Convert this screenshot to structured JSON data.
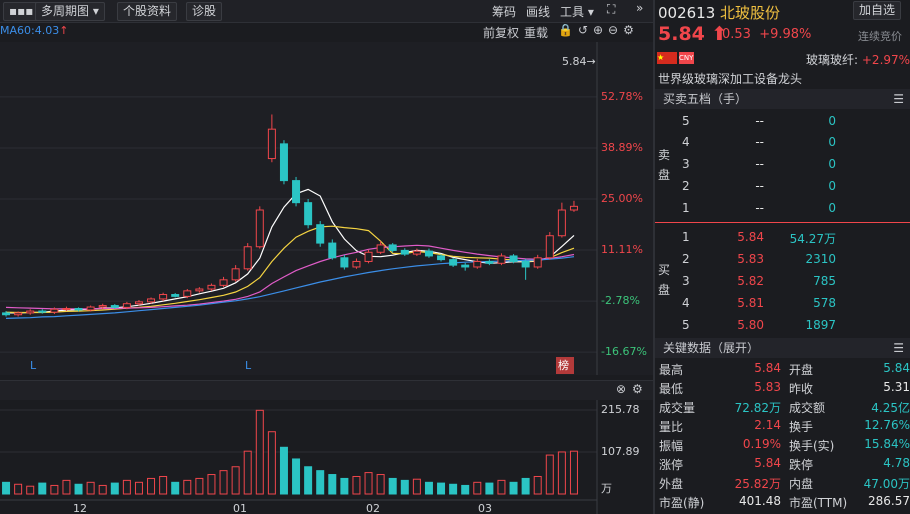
{
  "toolbar": {
    "menu": "▪▪▪",
    "items": [
      "多周期图",
      "个股资料",
      "诊股"
    ],
    "right_items": [
      "筹码",
      "画线",
      "工具"
    ]
  },
  "chart_header": {
    "ma_legend": "MA60:4.03",
    "right_items": [
      "前复权",
      "重载"
    ]
  },
  "quote": {
    "code": "002613",
    "name": "北玻股份",
    "add_button": "加自选",
    "price": "5.84",
    "change": "0.53",
    "change_pct": "+9.98%",
    "status": "连续竞价",
    "sector": "玻璃玻纤:",
    "sector_change": "+2.97%",
    "concept": "世界级玻璃深加工设备龙头"
  },
  "order_book": {
    "title": "买卖五档（手）",
    "sell_label": "卖盘",
    "buy_label": "买盘",
    "sell": [
      [
        "5",
        "--",
        "0"
      ],
      [
        "4",
        "--",
        "0"
      ],
      [
        "3",
        "--",
        "0"
      ],
      [
        "2",
        "--",
        "0"
      ],
      [
        "1",
        "--",
        "0"
      ]
    ],
    "buy": [
      [
        "1",
        "5.84",
        "54.27万"
      ],
      [
        "2",
        "5.83",
        "2310"
      ],
      [
        "3",
        "5.82",
        "785"
      ],
      [
        "4",
        "5.81",
        "578"
      ],
      [
        "5",
        "5.80",
        "1897"
      ]
    ]
  },
  "key_data": {
    "title": "关键数据（展开）",
    "rows": [
      [
        "最高",
        "5.84",
        "开盘",
        "5.84"
      ],
      [
        "最低",
        "5.83",
        "昨收",
        "5.31"
      ],
      [
        "成交量",
        "72.82万",
        "成交额",
        "4.25亿"
      ],
      [
        "量比",
        "2.14",
        "换手",
        "12.76%"
      ],
      [
        "振幅",
        "0.19%",
        "换手(实)",
        "15.84%"
      ],
      [
        "涨停",
        "5.84",
        "跌停",
        "4.78"
      ],
      [
        "外盘",
        "25.82万",
        "内盘",
        "47.00万"
      ],
      [
        "市盈(静)",
        "401.48",
        "市盈(TTM)",
        "286.57"
      ]
    ]
  },
  "chart_data": [
    {
      "type": "candlestick",
      "last_price_label": "5.84→",
      "badge": "榜",
      "markers": [
        "L",
        "L"
      ],
      "ylim": [
        -22.9,
        65.0
      ],
      "yticks": [
        {
          "value": 52.78,
          "label": "52.78%"
        },
        {
          "value": 38.89,
          "label": "38.89%"
        },
        {
          "value": 25.0,
          "label": "25.00%"
        },
        {
          "value": 11.11,
          "label": "11.11%"
        },
        {
          "value": -2.78,
          "label": "-2.78%"
        },
        {
          "value": -16.67,
          "label": "-16.67%"
        }
      ],
      "grid": true,
      "up_color": "#f0464b",
      "down_color": "#2bc4c4",
      "open": [
        -6.0,
        -6.5,
        -6.0,
        -5.5,
        -5.8,
        -5.0,
        -4.8,
        -5.2,
        -4.4,
        -4.0,
        -4.5,
        -3.5,
        -3.0,
        -2.2,
        -1.0,
        -1.5,
        0.0,
        0.5,
        1.5,
        3.0,
        6.0,
        12.0,
        36.0,
        40.0,
        30.0,
        24.0,
        18.0,
        13.0,
        9.0,
        6.5,
        8.0,
        10.5,
        12.5,
        11.0,
        10.0,
        10.8,
        9.5,
        8.5,
        7.0,
        6.5,
        8.0,
        7.5,
        9.5,
        8.0,
        6.5,
        9.0,
        15.0,
        22.0
      ],
      "high": [
        -5.5,
        -5.6,
        -5.0,
        -5.0,
        -4.5,
        -4.3,
        -4.5,
        -4.0,
        -3.5,
        -3.6,
        -3.0,
        -2.5,
        -1.8,
        -0.5,
        -0.6,
        0.5,
        1.0,
        2.0,
        3.8,
        7.0,
        13.0,
        23.0,
        48.0,
        41.0,
        31.0,
        25.0,
        19.0,
        14.0,
        9.8,
        8.8,
        11.2,
        13.5,
        13.0,
        11.6,
        11.5,
        11.5,
        10.0,
        9.0,
        7.6,
        8.7,
        8.6,
        10.2,
        10.0,
        8.7,
        9.8,
        16.0,
        24.0,
        24.5
      ],
      "low": [
        -7.0,
        -7.0,
        -6.5,
        -6.2,
        -6.3,
        -5.5,
        -5.6,
        -5.6,
        -5.0,
        -4.9,
        -5.0,
        -4.0,
        -3.5,
        -2.8,
        -1.8,
        -2.0,
        -0.5,
        0.0,
        1.0,
        2.5,
        5.5,
        11.5,
        35.0,
        29.0,
        23.0,
        17.0,
        12.0,
        8.5,
        5.8,
        6.0,
        7.5,
        10.0,
        10.5,
        9.5,
        9.5,
        9.0,
        8.0,
        6.5,
        5.5,
        6.0,
        7.0,
        7.0,
        7.5,
        3.0,
        6.0,
        8.5,
        14.5,
        21.5
      ],
      "close": [
        -6.5,
        -6.0,
        -5.5,
        -5.8,
        -5.0,
        -4.8,
        -5.2,
        -4.4,
        -4.0,
        -4.5,
        -3.5,
        -3.0,
        -2.2,
        -1.0,
        -1.5,
        0.0,
        0.5,
        1.5,
        3.0,
        6.0,
        12.0,
        22.0,
        44.0,
        30.0,
        24.0,
        18.0,
        13.0,
        9.0,
        6.5,
        8.0,
        10.5,
        12.5,
        11.0,
        10.0,
        10.8,
        9.5,
        8.5,
        7.0,
        6.5,
        8.0,
        7.5,
        9.5,
        8.0,
        6.5,
        9.0,
        15.0,
        22.0,
        23.0
      ],
      "series": [
        {
          "color": "#ffffff",
          "values": [
            -6,
            -6,
            -5.9,
            -5.8,
            -5.5,
            -5.2,
            -5.1,
            -5,
            -4.7,
            -4.6,
            -4.3,
            -3.9,
            -3.4,
            -2.8,
            -2.2,
            -1.6,
            -0.8,
            -0.1,
            0.7,
            2.2,
            4.6,
            8.9,
            17.4,
            22.8,
            26.4,
            27.6,
            25.8,
            18.8,
            14.1,
            10.9,
            9.4,
            9.3,
            9.7,
            10.4,
            11.0,
            10.8,
            10.2,
            9.1,
            8.5,
            7.9,
            7.5,
            7.7,
            7.9,
            7.9,
            8.1,
            9.2,
            12.1,
            15.1
          ]
        },
        {
          "color": "#f5d442",
          "values": [
            -5.8,
            -5.9,
            -5.9,
            -5.9,
            -5.8,
            -5.6,
            -5.5,
            -5.4,
            -5.2,
            -5.0,
            -4.7,
            -4.5,
            -4.2,
            -3.8,
            -3.4,
            -2.9,
            -2.4,
            -1.8,
            -1.2,
            -0.3,
            1.2,
            3.6,
            8.0,
            11.6,
            14.6,
            16.2,
            17.4,
            17.6,
            17.2,
            16.9,
            16.4,
            13.5,
            10.2,
            10.1,
            10.7,
            10.4,
            9.9,
            9.4,
            9.1,
            9.0,
            8.9,
            8.6,
            8.4,
            8.0,
            8.3,
            9.0,
            10.4,
            11.6
          ]
        },
        {
          "color": "#e05cc8",
          "values": [
            -4.5,
            -4.6,
            -4.7,
            -4.8,
            -4.9,
            -4.9,
            -4.9,
            -4.9,
            -4.8,
            -4.8,
            -4.7,
            -4.6,
            -4.5,
            -4.3,
            -4.1,
            -3.9,
            -3.6,
            -3.2,
            -2.8,
            -2.3,
            -1.5,
            -0.3,
            2.0,
            3.8,
            5.5,
            6.8,
            8.0,
            9.0,
            9.8,
            10.5,
            11.3,
            11.8,
            12.0,
            12.2,
            12.4,
            12.2,
            11.6,
            11.0,
            10.5,
            10.0,
            9.6,
            9.2,
            9.0,
            8.7,
            8.6,
            8.8,
            9.3,
            9.9
          ]
        },
        {
          "color": "#3b8ee8",
          "values": [
            -7.5,
            -7.4,
            -7.3,
            -7.1,
            -7.0,
            -6.8,
            -6.6,
            -6.4,
            -6.2,
            -6.0,
            -5.7,
            -5.4,
            -5.1,
            -4.8,
            -4.5,
            -4.2,
            -3.9,
            -3.5,
            -3.1,
            -2.7,
            -2.2,
            -1.6,
            -0.8,
            0.0,
            0.8,
            1.6,
            2.4,
            3.1,
            3.8,
            4.4,
            5.0,
            5.5,
            6.0,
            6.4,
            6.8,
            7.1,
            7.4,
            7.6,
            7.8,
            7.9,
            8.0,
            8.1,
            8.2,
            8.3,
            8.4,
            8.6,
            8.9,
            9.3
          ]
        }
      ]
    },
    {
      "type": "bar",
      "unit_label": "万",
      "ylim": [
        0,
        241.5
      ],
      "yticks": [
        215.78,
        107.89
      ],
      "x_labels": [
        "12",
        "01",
        "02",
        "03"
      ],
      "values": [
        30,
        25,
        20,
        28,
        22,
        35,
        25,
        30,
        22,
        28,
        35,
        30,
        40,
        45,
        30,
        35,
        40,
        50,
        60,
        70,
        110,
        215,
        160,
        120,
        90,
        70,
        60,
        50,
        40,
        45,
        55,
        50,
        40,
        35,
        38,
        30,
        28,
        25,
        22,
        30,
        28,
        35,
        30,
        40,
        45,
        100,
        108,
        110
      ]
    }
  ]
}
